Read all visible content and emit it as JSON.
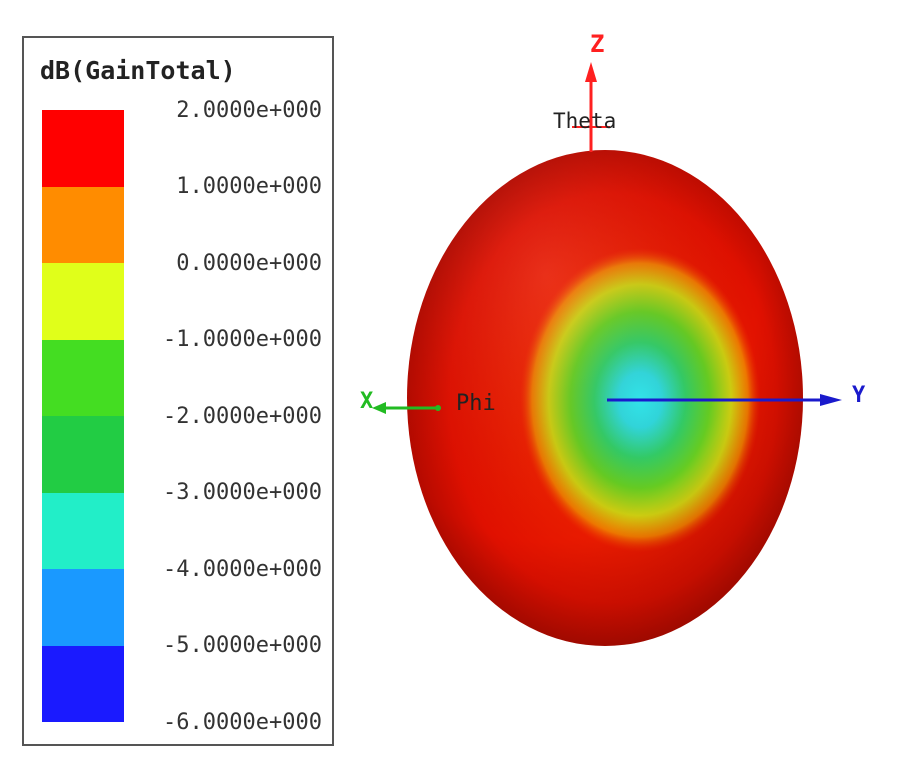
{
  "legend": {
    "title": "dB(GainTotal)",
    "ticks": [
      "2.0000e+000",
      "1.0000e+000",
      "0.0000e+000",
      "-1.0000e+000",
      "-2.0000e+000",
      "-3.0000e+000",
      "-4.0000e+000",
      "-5.0000e+000",
      "-6.0000e+000"
    ],
    "band_colors": [
      "#ff0000",
      "#ff8c00",
      "#e0ff1a",
      "#44dd22",
      "#22cc44",
      "#22eec8",
      "#1a99ff",
      "#1a1aff"
    ]
  },
  "axes": {
    "z_label": "Z",
    "y_label": "Y",
    "x_label": "X",
    "theta_label": "Theta",
    "phi_label": "Phi",
    "colors": {
      "z": "#ff2020",
      "y": "#1a1acc",
      "x": "#22bb22"
    }
  }
}
